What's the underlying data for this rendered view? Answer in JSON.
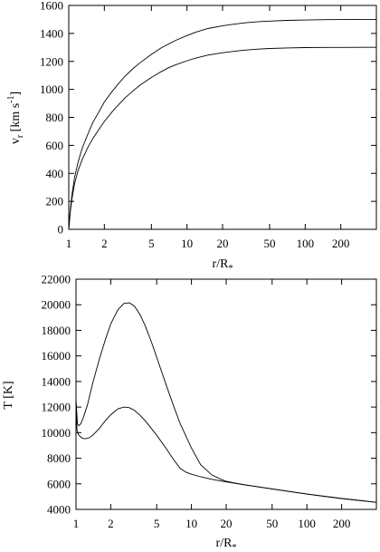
{
  "chart_data": [
    {
      "type": "line",
      "ylabel_main": "v",
      "ylabel_sub": "r",
      "ylabel_unit_pre": " [km s",
      "ylabel_sup": "-1",
      "ylabel_unit_post": "]",
      "xlabel_main": "r/R",
      "xlabel_sub": "*",
      "x_scale": "log",
      "xlim": [
        1,
        400
      ],
      "ylim": [
        0,
        1600
      ],
      "x_ticks": [
        1,
        2,
        5,
        10,
        20,
        50,
        100,
        200
      ],
      "x_tick_labels": [
        "1",
        "2",
        "5",
        "10",
        "20",
        "50",
        "100",
        "200"
      ],
      "y_ticks": [
        0,
        200,
        400,
        600,
        800,
        1000,
        1200,
        1400,
        1600
      ],
      "y_tick_labels": [
        "0",
        "200",
        "400",
        "600",
        "800",
        "1000",
        "1200",
        "1400",
        "1600"
      ],
      "grid": false,
      "series": [
        {
          "x": [
            1.0,
            1.03,
            1.07,
            1.12,
            1.2,
            1.3,
            1.45,
            1.6,
            1.8,
            2.0,
            2.3,
            2.6,
            3.0,
            3.5,
            4.0,
            5.0,
            6.0,
            7.0,
            8.0,
            10.0,
            12.0,
            15.0,
            20.0,
            30.0,
            40.0,
            50.0,
            70.0,
            100.0,
            150.0,
            200.0,
            300.0,
            400.0
          ],
          "y": [
            0,
            140,
            260,
            370,
            480,
            580,
            680,
            765,
            840,
            910,
            980,
            1035,
            1095,
            1150,
            1190,
            1250,
            1295,
            1325,
            1350,
            1385,
            1410,
            1435,
            1455,
            1475,
            1484,
            1488,
            1493,
            1496,
            1498,
            1499,
            1500,
            1500
          ]
        },
        {
          "x": [
            1.0,
            1.03,
            1.07,
            1.12,
            1.2,
            1.3,
            1.45,
            1.6,
            1.8,
            2.0,
            2.3,
            2.6,
            3.0,
            3.5,
            4.0,
            5.0,
            6.0,
            7.0,
            8.0,
            10.0,
            12.0,
            15.0,
            20.0,
            30.0,
            40.0,
            50.0,
            70.0,
            100.0,
            150.0,
            200.0,
            300.0,
            400.0
          ],
          "y": [
            0,
            125,
            230,
            325,
            420,
            500,
            585,
            650,
            715,
            770,
            835,
            885,
            940,
            990,
            1030,
            1085,
            1125,
            1155,
            1175,
            1205,
            1225,
            1245,
            1262,
            1280,
            1288,
            1292,
            1296,
            1299,
            1300,
            1300,
            1301,
            1301
          ]
        }
      ]
    },
    {
      "type": "line",
      "ylabel_main": "T [K]",
      "xlabel_main": "r/R",
      "xlabel_sub": "*",
      "x_scale": "log",
      "xlim": [
        1,
        400
      ],
      "ylim": [
        4000,
        22000
      ],
      "x_ticks": [
        1,
        2,
        5,
        10,
        20,
        50,
        100,
        200
      ],
      "x_tick_labels": [
        "1",
        "2",
        "5",
        "10",
        "20",
        "50",
        "100",
        "200"
      ],
      "y_ticks": [
        4000,
        6000,
        8000,
        10000,
        12000,
        14000,
        16000,
        18000,
        20000,
        22000
      ],
      "y_tick_labels": [
        "4000",
        "6000",
        "8000",
        "10000",
        "12000",
        "14000",
        "16000",
        "18000",
        "20000",
        "22000"
      ],
      "grid": false,
      "series": [
        {
          "x": [
            1.0,
            1.03,
            1.06,
            1.1,
            1.15,
            1.25,
            1.4,
            1.6,
            1.8,
            2.0,
            2.3,
            2.6,
            2.9,
            3.2,
            3.6,
            4.0,
            4.5,
            5.0,
            6.0,
            7.0,
            8.0,
            10.0,
            12.0,
            15.0,
            18.0,
            20.0,
            25.0,
            30.0,
            50.0,
            100.0,
            200.0,
            400.0
          ],
          "y": [
            12600,
            10700,
            10550,
            10700,
            11100,
            12100,
            13900,
            15800,
            17300,
            18500,
            19600,
            20100,
            20150,
            19900,
            19200,
            18300,
            17100,
            15900,
            13800,
            12100,
            10700,
            8800,
            7500,
            6700,
            6350,
            6200,
            6020,
            5900,
            5600,
            5200,
            4850,
            4550
          ]
        },
        {
          "x": [
            1.0,
            1.02,
            1.05,
            1.1,
            1.15,
            1.2,
            1.3,
            1.4,
            1.6,
            1.8,
            2.0,
            2.3,
            2.6,
            2.9,
            3.2,
            3.6,
            4.0,
            5.0,
            6.0,
            7.0,
            8.0,
            9.0,
            10.0,
            12.0,
            15.0,
            20.0,
            30.0,
            50.0,
            100.0,
            200.0,
            400.0
          ],
          "y": [
            12600,
            10200,
            9850,
            9650,
            9550,
            9520,
            9600,
            9800,
            10350,
            10950,
            11400,
            11850,
            12000,
            11950,
            11750,
            11350,
            10900,
            9800,
            8800,
            7900,
            7200,
            6900,
            6750,
            6550,
            6350,
            6150,
            5900,
            5600,
            5200,
            4850,
            4550
          ]
        }
      ]
    }
  ]
}
